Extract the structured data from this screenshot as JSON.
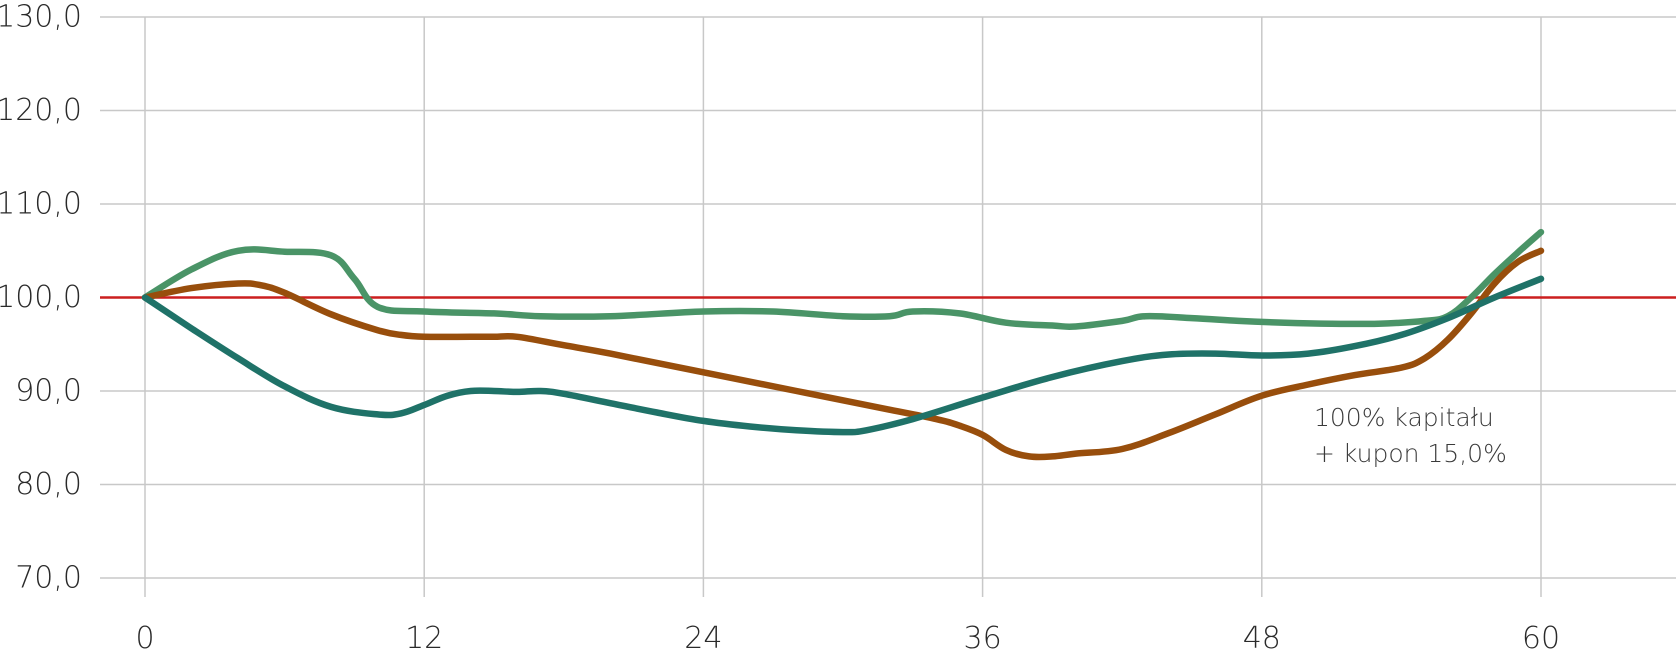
{
  "chart_data": {
    "type": "line",
    "title": "",
    "xlabel": "",
    "ylabel": "",
    "xlim": [
      -6,
      65
    ],
    "ylim": [
      70,
      130
    ],
    "x_ticks": [
      0,
      12,
      24,
      36,
      48,
      60
    ],
    "y_ticks": [
      70,
      80,
      90,
      100,
      110,
      120,
      130
    ],
    "x_tick_labels": [
      "0",
      "12",
      "24",
      "36",
      "48",
      "60"
    ],
    "y_tick_labels": [
      "70,0",
      "80,0",
      "90,0",
      "100,0",
      "110,0",
      "120,0",
      "130,0"
    ],
    "grid": true,
    "reference_line": {
      "y": 100,
      "color": "#cc1f1f"
    },
    "annotation": {
      "lines": [
        "100% kapitału",
        "+ kupon 15,0%"
      ]
    },
    "series": [
      {
        "color": "#4a9467",
        "x": [
          0,
          2,
          4,
          6,
          8,
          9,
          10,
          12,
          15,
          17,
          20,
          24,
          27,
          30,
          32,
          33,
          35,
          37,
          39,
          40,
          42,
          43,
          45,
          47,
          49,
          51,
          53,
          55,
          56,
          57,
          58,
          59,
          60
        ],
        "y": [
          100,
          103,
          105,
          104.9,
          104.5,
          102,
          99,
          98.5,
          98.3,
          98,
          98,
          98.5,
          98.5,
          98,
          98,
          98.5,
          98.3,
          97.3,
          97,
          96.9,
          97.5,
          98,
          97.8,
          97.5,
          97.3,
          97.2,
          97.2,
          97.5,
          98,
          100,
          102.5,
          104.8,
          107
        ]
      },
      {
        "color": "#984e0c",
        "x": [
          0,
          2,
          4,
          5,
          6,
          8,
          10,
          11,
          12,
          14,
          15,
          16,
          18,
          20,
          24,
          28,
          32,
          34,
          35,
          36,
          37,
          38,
          39,
          40,
          42,
          44,
          46,
          48,
          50,
          52,
          54,
          55,
          56,
          57,
          58,
          59,
          60
        ],
        "y": [
          100,
          101,
          101.5,
          101.3,
          100.5,
          98.2,
          96.5,
          96,
          95.8,
          95.8,
          95.8,
          95.8,
          94.9,
          94,
          92,
          90,
          88,
          87,
          86.3,
          85.3,
          83.7,
          83,
          83,
          83.3,
          83.8,
          85.5,
          87.5,
          89.5,
          90.7,
          91.7,
          92.5,
          93.5,
          95.5,
          98.3,
          101.5,
          103.8,
          105
        ]
      },
      {
        "color": "#1f7268",
        "x": [
          0,
          2,
          4,
          6,
          8,
          10,
          11,
          12,
          13,
          14,
          15,
          16,
          17,
          18,
          20,
          22,
          24,
          26,
          28,
          30,
          31,
          33,
          36,
          39,
          42,
          44,
          46,
          48,
          50,
          52,
          54,
          56,
          58,
          60
        ],
        "y": [
          100,
          96.7,
          93.5,
          90.5,
          88.3,
          87.5,
          87.6,
          88.5,
          89.5,
          90,
          90,
          89.9,
          90,
          89.7,
          88.7,
          87.7,
          86.8,
          86.2,
          85.8,
          85.6,
          85.8,
          87,
          89.3,
          91.5,
          93.2,
          93.9,
          94,
          93.8,
          94,
          94.8,
          96,
          97.8,
          100,
          102
        ]
      }
    ]
  }
}
